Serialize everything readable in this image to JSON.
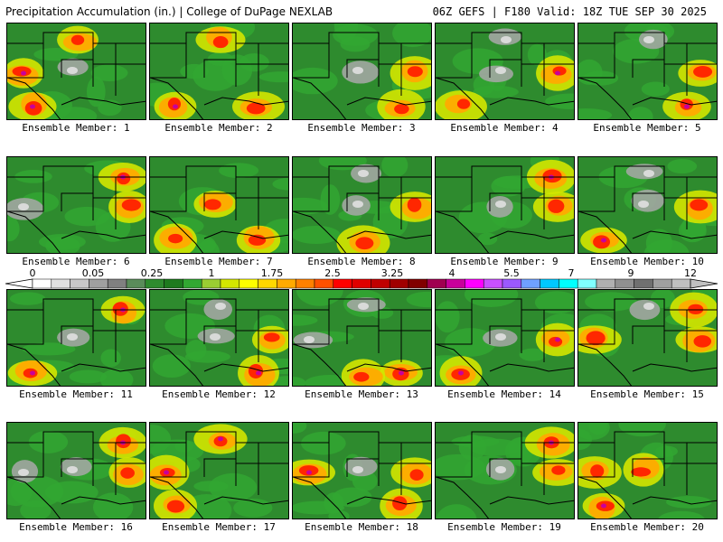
{
  "header": {
    "title_left": "Precipitation Accumulation (in.) | College of DuPage NEXLAB",
    "title_right": "06Z GEFS | F180 Valid: 18Z TUE SEP 30 2025"
  },
  "panels": [
    {
      "label": "Ensemble Member: 1",
      "heavy": [
        "west",
        "southwest",
        "north"
      ],
      "dry": [
        "center"
      ]
    },
    {
      "label": "Ensemble Member: 2",
      "heavy": [
        "southwest",
        "north",
        "southeast"
      ],
      "dry": []
    },
    {
      "label": "Ensemble Member: 3",
      "heavy": [
        "east",
        "southeast"
      ],
      "dry": [
        "center"
      ]
    },
    {
      "label": "Ensemble Member: 4",
      "heavy": [
        "east",
        "southwest"
      ],
      "dry": [
        "north",
        "center"
      ]
    },
    {
      "label": "Ensemble Member: 5",
      "heavy": [
        "east",
        "southeast"
      ],
      "dry": [
        "north"
      ]
    },
    {
      "label": "Ensemble Member: 6",
      "heavy": [
        "northeast",
        "east"
      ],
      "dry": [
        "west"
      ]
    },
    {
      "label": "Ensemble Member: 7",
      "heavy": [
        "center",
        "southeast",
        "southwest"
      ],
      "dry": []
    },
    {
      "label": "Ensemble Member: 8",
      "heavy": [
        "east",
        "south"
      ],
      "dry": [
        "north",
        "center"
      ]
    },
    {
      "label": "Ensemble Member: 9",
      "heavy": [
        "northeast",
        "east"
      ],
      "dry": [
        "center"
      ]
    },
    {
      "label": "Ensemble Member: 10",
      "heavy": [
        "east",
        "southwest"
      ],
      "dry": [
        "north",
        "center"
      ]
    },
    {
      "label": "Ensemble Member: 11",
      "heavy": [
        "northeast",
        "southwest"
      ],
      "dry": [
        "center"
      ]
    },
    {
      "label": "Ensemble Member: 12",
      "heavy": [
        "southeast",
        "east"
      ],
      "dry": [
        "north",
        "center"
      ]
    },
    {
      "label": "Ensemble Member: 13",
      "heavy": [
        "southeast",
        "south"
      ],
      "dry": [
        "north",
        "west"
      ]
    },
    {
      "label": "Ensemble Member: 14",
      "heavy": [
        "east",
        "southwest"
      ],
      "dry": [
        "center"
      ]
    },
    {
      "label": "Ensemble Member: 15",
      "heavy": [
        "northeast",
        "east",
        "west"
      ],
      "dry": [
        "north"
      ]
    },
    {
      "label": "Ensemble Member: 16",
      "heavy": [
        "northeast",
        "east"
      ],
      "dry": [
        "west",
        "center"
      ]
    },
    {
      "label": "Ensemble Member: 17",
      "heavy": [
        "southwest",
        "west",
        "north"
      ],
      "dry": []
    },
    {
      "label": "Ensemble Member: 18",
      "heavy": [
        "east",
        "southeast",
        "west"
      ],
      "dry": [
        "center"
      ]
    },
    {
      "label": "Ensemble Member: 19",
      "heavy": [
        "northeast",
        "east"
      ],
      "dry": [
        "center"
      ]
    },
    {
      "label": "Ensemble Member: 20",
      "heavy": [
        "center",
        "west",
        "southwest"
      ],
      "dry": []
    }
  ],
  "colorbar": {
    "ticks": [
      "0",
      "0.05",
      "0.25",
      "1",
      "1.75",
      "2.5",
      "3.25",
      "4",
      "5.5",
      "7",
      "9",
      "12"
    ],
    "colors": [
      "#ffffff",
      "#e0e0e0",
      "#c8c8c8",
      "#a0a0a0",
      "#808080",
      "#5a8c5a",
      "#2e8b2e",
      "#1e7a1e",
      "#32a832",
      "#9acd32",
      "#d4e600",
      "#ffff00",
      "#ffd700",
      "#ffaa00",
      "#ff8000",
      "#ff5000",
      "#ff0000",
      "#e00000",
      "#c00000",
      "#a00000",
      "#800000",
      "#a00050",
      "#c8009b",
      "#ff00ff",
      "#c850ff",
      "#9b59ff",
      "#6fa0ff",
      "#00c8ff",
      "#00ffff",
      "#80ffff",
      "#b0b0b0",
      "#909090",
      "#707070",
      "#a0a0a0",
      "#c0c0c0"
    ]
  }
}
